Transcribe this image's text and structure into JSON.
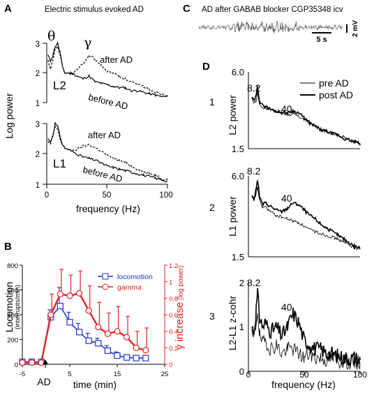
{
  "chart_data": [
    {
      "panel": "A",
      "type": "line",
      "title": "Electric stimulus evoked AD",
      "xlabel": "frequency (Hz)",
      "ylabel": "Log power",
      "xlim": [
        0,
        100
      ],
      "xticks": [
        0,
        50,
        100
      ],
      "greek_theta": "θ",
      "greek_gamma": "γ",
      "subplots": [
        {
          "label": "L2",
          "ylim": [
            1,
            3
          ],
          "yticks": [
            1,
            2,
            3
          ],
          "annotations": [
            "after AD",
            "before AD"
          ],
          "series": [
            {
              "name": "before AD",
              "style": "solid",
              "x": [
                1,
                3,
                5,
                7,
                9,
                11,
                13,
                15,
                20,
                25,
                30,
                35,
                40,
                45,
                50,
                55,
                60,
                65,
                70,
                75,
                80,
                85,
                90,
                95,
                100
              ],
              "y": [
                2.6,
                2.4,
                2.6,
                2.9,
                3.0,
                2.7,
                2.2,
                2.0,
                2.0,
                1.9,
                1.8,
                1.9,
                1.7,
                1.65,
                1.6,
                1.55,
                1.5,
                1.5,
                1.4,
                1.4,
                1.35,
                1.3,
                1.25,
                1.2,
                1.2
              ]
            },
            {
              "name": "after AD",
              "style": "dashed",
              "x": [
                1,
                3,
                5,
                7,
                9,
                11,
                13,
                15,
                20,
                25,
                30,
                35,
                40,
                45,
                50,
                55,
                60,
                65,
                70,
                75,
                80,
                85,
                90,
                95,
                100
              ],
              "y": [
                2.4,
                2.1,
                2.4,
                2.8,
                2.9,
                2.6,
                2.2,
                2.0,
                1.95,
                2.1,
                2.3,
                2.6,
                2.45,
                2.25,
                2.05,
                2.0,
                1.9,
                1.8,
                1.7,
                1.6,
                1.55,
                1.45,
                1.35,
                1.3,
                1.25
              ]
            }
          ]
        },
        {
          "label": "L1",
          "ylim": [
            1,
            3
          ],
          "yticks": [
            1,
            2,
            3
          ],
          "annotations": [
            "after AD",
            "before AD"
          ],
          "series": [
            {
              "name": "before AD",
              "style": "solid",
              "x": [
                1,
                3,
                5,
                7,
                9,
                11,
                13,
                15,
                20,
                25,
                30,
                35,
                40,
                45,
                50,
                55,
                60,
                65,
                70,
                75,
                80,
                85,
                90,
                95,
                100
              ],
              "y": [
                2.5,
                2.4,
                2.6,
                3.0,
                2.9,
                2.6,
                2.3,
                2.2,
                2.1,
                2.0,
                1.9,
                1.85,
                1.8,
                1.7,
                1.6,
                1.55,
                1.5,
                1.45,
                1.4,
                1.35,
                1.3,
                1.25,
                1.2,
                1.15,
                1.1
              ]
            },
            {
              "name": "after AD",
              "style": "dashed",
              "x": [
                1,
                3,
                5,
                7,
                9,
                11,
                13,
                15,
                20,
                25,
                30,
                35,
                40,
                45,
                50,
                55,
                60,
                65,
                70,
                75,
                80,
                85,
                90,
                95,
                100
              ],
              "y": [
                2.4,
                2.3,
                2.6,
                2.9,
                2.8,
                2.5,
                2.3,
                2.2,
                2.1,
                2.15,
                2.25,
                2.3,
                2.2,
                2.1,
                1.95,
                1.85,
                1.8,
                1.7,
                1.6,
                1.5,
                1.4,
                1.35,
                1.3,
                1.2,
                1.15
              ]
            }
          ]
        }
      ]
    },
    {
      "panel": "B",
      "type": "line",
      "xlabel": "time (min)",
      "ylabel": "Locomotion",
      "ylabel_sub": "(interrupts/min)",
      "y2label": "γ increase",
      "y2label_sub": "(log power)",
      "event_label": "AD",
      "xlim": [
        -5,
        25
      ],
      "xticks": [
        -5,
        5,
        15,
        25
      ],
      "ylim": [
        0,
        800
      ],
      "yticks": [
        0,
        200,
        400,
        600,
        800
      ],
      "y2lim": [
        0,
        1.2
      ],
      "y2ticks": [
        0,
        0.2,
        0.4,
        0.6,
        0.8,
        1,
        1.2
      ],
      "y2ticklabels": [
        "0",
        "0.2",
        "0.4",
        "0.6",
        "0.8",
        "1",
        "1.2"
      ],
      "legend": "top-right",
      "x": [
        -5,
        -3,
        -1,
        1,
        3,
        5,
        7,
        9,
        11,
        13,
        15,
        17,
        19,
        21
      ],
      "series": [
        {
          "name": "locomotion",
          "axis": "left",
          "color": "#2233cc",
          "marker": "square",
          "values": [
            20,
            20,
            20,
            380,
            470,
            340,
            260,
            190,
            170,
            110,
            70,
            55,
            50,
            50
          ],
          "errors": [
            0,
            0,
            0,
            60,
            150,
            80,
            70,
            60,
            40,
            40,
            30,
            20,
            15,
            15
          ]
        },
        {
          "name": "gamma",
          "axis": "right",
          "color": "#dd2222",
          "marker": "circle",
          "values": [
            0.02,
            0.02,
            0.02,
            0.6,
            0.85,
            0.83,
            0.86,
            0.65,
            0.45,
            0.37,
            0.4,
            0.33,
            0.2,
            0.17
          ],
          "errors": [
            0,
            0,
            0,
            0.25,
            0.3,
            0.25,
            0.27,
            0.3,
            0.3,
            0.25,
            0.3,
            0.25,
            0.2,
            0.27
          ]
        }
      ]
    },
    {
      "panel": "C",
      "type": "line",
      "title": "AD after GABAB blocker CGP35348 icv",
      "scalebar_time": "5 s",
      "scalebar_voltage": "2 mV"
    },
    {
      "panel": "D",
      "type": "line",
      "xlabel": "frequency (Hz)",
      "xlim": [
        0,
        100
      ],
      "xticks": [
        0,
        50,
        100
      ],
      "legend": "top-right",
      "legend_entries": [
        "pre AD",
        "post AD"
      ],
      "peak_label_theta": "8.2",
      "peak_label_gamma": "40",
      "subplots": [
        {
          "row": "1",
          "ylabel": "L2 power",
          "ylim": [
            1.5,
            6.0
          ],
          "yticklabels": [
            "1.5",
            "6.0"
          ],
          "x": [
            3,
            5,
            7,
            8.2,
            10,
            13,
            15,
            20,
            25,
            30,
            35,
            40,
            45,
            50,
            55,
            60,
            65,
            70,
            75,
            80,
            85,
            90,
            95,
            100
          ],
          "pre": [
            4.4,
            4.2,
            4.3,
            4.8,
            4.1,
            3.9,
            3.9,
            3.8,
            3.7,
            3.6,
            3.5,
            3.5,
            3.4,
            3.2,
            3.0,
            2.8,
            2.6,
            2.5,
            2.4,
            2.3,
            2.2,
            2.0,
            1.9,
            1.8
          ],
          "post": [
            4.5,
            4.3,
            4.6,
            5.2,
            4.3,
            4.0,
            4.0,
            3.8,
            3.7,
            3.6,
            3.6,
            3.7,
            3.6,
            3.3,
            3.0,
            2.8,
            2.6,
            2.5,
            2.4,
            2.3,
            2.1,
            2.0,
            1.9,
            1.8
          ]
        },
        {
          "row": "2",
          "ylabel": "L1 power",
          "ylim": [
            1.5,
            6.0
          ],
          "yticklabels": [
            "1.5",
            "6.0"
          ],
          "x": [
            3,
            5,
            7,
            8.2,
            10,
            13,
            15,
            20,
            25,
            30,
            35,
            40,
            45,
            50,
            55,
            60,
            65,
            70,
            75,
            80,
            85,
            90,
            95,
            100
          ],
          "pre": [
            4.8,
            4.6,
            5.0,
            5.4,
            4.6,
            4.2,
            4.3,
            4.0,
            3.8,
            3.7,
            3.6,
            3.5,
            3.4,
            3.2,
            3.0,
            2.9,
            2.8,
            2.7,
            2.6,
            2.5,
            2.3,
            2.2,
            2.0,
            1.9
          ],
          "post": [
            4.9,
            4.7,
            5.3,
            5.8,
            4.8,
            4.4,
            4.5,
            4.3,
            4.1,
            4.0,
            4.2,
            4.5,
            4.4,
            4.1,
            3.8,
            3.6,
            3.3,
            3.1,
            2.9,
            2.7,
            2.5,
            2.3,
            2.1,
            2.0
          ]
        },
        {
          "row": "3",
          "ylabel": "L2-L1 z-cohr",
          "ylim": [
            0,
            2
          ],
          "yticklabels": [
            "0",
            "1",
            "2"
          ],
          "x": [
            3,
            5,
            7,
            8.2,
            10,
            13,
            15,
            20,
            25,
            30,
            35,
            40,
            45,
            50,
            55,
            60,
            65,
            70,
            75,
            80,
            85,
            90,
            95,
            100
          ],
          "pre": [
            0.8,
            0.7,
            1.1,
            1.4,
            0.8,
            0.6,
            0.7,
            0.5,
            0.6,
            0.4,
            0.5,
            0.5,
            0.4,
            0.3,
            0.4,
            0.3,
            0.3,
            0.25,
            0.3,
            0.2,
            0.25,
            0.2,
            0.2,
            0.2
          ],
          "post": [
            1.0,
            0.9,
            1.4,
            1.75,
            1.2,
            1.0,
            1.1,
            0.9,
            1.0,
            0.8,
            1.0,
            1.3,
            1.1,
            0.7,
            0.6,
            0.5,
            0.5,
            0.4,
            0.4,
            0.35,
            0.3,
            0.3,
            0.3,
            0.25
          ]
        }
      ]
    }
  ]
}
